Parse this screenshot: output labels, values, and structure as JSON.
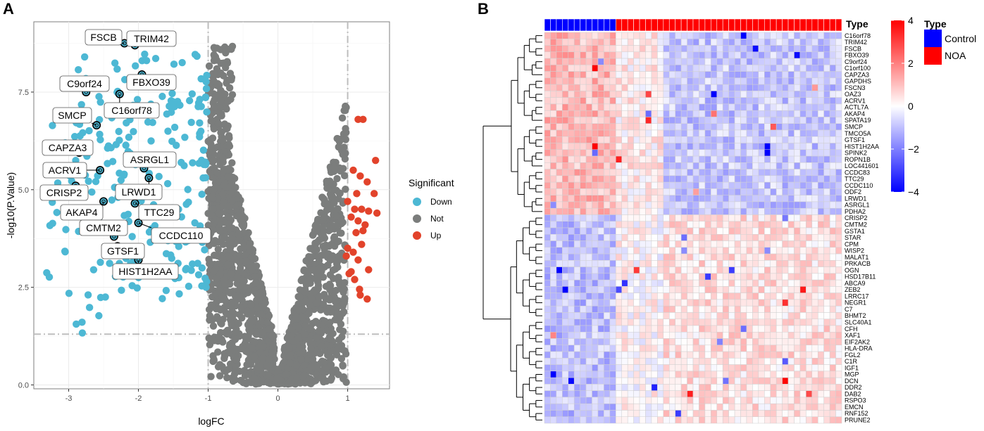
{
  "panels": {
    "a_letter": "A",
    "b_letter": "B"
  },
  "chart_data": [
    {
      "type": "scatter",
      "title": "",
      "xlabel": "logFC",
      "ylabel": "-log10(P.Value)",
      "xlim": [
        -3.5,
        1.6
      ],
      "ylim": [
        -0.1,
        9.3
      ],
      "x_ticks": [
        -3,
        -2,
        -1,
        0,
        1
      ],
      "x_tick_labels": [
        "-3",
        "-2",
        "-1",
        "0",
        "1"
      ],
      "y_ticks": [
        0.0,
        2.5,
        5.0,
        7.5
      ],
      "y_tick_labels": [
        "0.0",
        "2.5",
        "5.0",
        "7.5"
      ],
      "thresholds": {
        "logFC": [
          -1,
          1
        ],
        "neglog10p": 1.3
      },
      "legend": {
        "title": "Significant",
        "entries": [
          {
            "name": "Down",
            "color": "#4db8d4"
          },
          {
            "name": "Not",
            "color": "#7b7d7c"
          },
          {
            "name": "Up",
            "color": "#e2432b"
          }
        ]
      },
      "up_points": [
        [
          1.15,
          6.8
        ],
        [
          1.22,
          6.8
        ],
        [
          1.4,
          5.75
        ],
        [
          1.08,
          5.5
        ],
        [
          1.18,
          5.35
        ],
        [
          1.28,
          5.2
        ],
        [
          1.13,
          4.9
        ],
        [
          1.0,
          4.7
        ],
        [
          1.1,
          4.5
        ],
        [
          1.2,
          4.5
        ],
        [
          1.3,
          4.45
        ],
        [
          1.42,
          4.4
        ],
        [
          1.05,
          4.3
        ],
        [
          1.15,
          4.2
        ],
        [
          1.25,
          4.1
        ],
        [
          1.12,
          3.9
        ],
        [
          1.2,
          3.6
        ],
        [
          1.0,
          3.5
        ],
        [
          1.08,
          3.4
        ],
        [
          1.15,
          3.2
        ],
        [
          1.3,
          2.95
        ],
        [
          1.05,
          2.9
        ],
        [
          1.1,
          2.7
        ],
        [
          1.18,
          2.3
        ],
        [
          1.28,
          2.2
        ],
        [
          1.02,
          2.85
        ],
        [
          1.22,
          3.95
        ],
        [
          1.38,
          4.9
        ],
        [
          0.98,
          3.3
        ],
        [
          1.17,
          2.45
        ]
      ],
      "labeled_genes": [
        {
          "gene": "FSCB",
          "x": -2.2,
          "y": 8.75
        },
        {
          "gene": "TRIM42",
          "x": -2.05,
          "y": 8.7
        },
        {
          "gene": "C9orf24",
          "x": -2.75,
          "y": 7.5
        },
        {
          "gene": "FBXO39",
          "x": -1.95,
          "y": 7.95
        },
        {
          "gene": "C16orf78",
          "x": -2.27,
          "y": 7.45
        },
        {
          "gene": "SMCP",
          "x": -2.6,
          "y": 6.65
        },
        {
          "gene": "CAPZA3",
          "x": -2.85,
          "y": 5.95
        },
        {
          "gene": "ASRGL1",
          "x": -1.92,
          "y": 5.55
        },
        {
          "gene": "ACRV1",
          "x": -2.55,
          "y": 5.5
        },
        {
          "gene": "CRISP2",
          "x": -2.9,
          "y": 5.1
        },
        {
          "gene": "LRWD1",
          "x": -1.85,
          "y": 5.3
        },
        {
          "gene": "AKAP4",
          "x": -2.5,
          "y": 4.7
        },
        {
          "gene": "TTC29",
          "x": -2.05,
          "y": 4.65
        },
        {
          "gene": "CMTM2",
          "x": -2.35,
          "y": 3.8
        },
        {
          "gene": "CCDC110",
          "x": -2.0,
          "y": 4.15
        },
        {
          "gene": "GTSF1",
          "x": -2.3,
          "y": 3.55
        },
        {
          "gene": "HIST1H2AA",
          "x": -2.0,
          "y": 3.2
        }
      ],
      "gene_labels_text": [
        "FSCB",
        "TRIM42",
        "C9orf24",
        "FBXO39",
        "C16orf78",
        "SMCP",
        "CAPZA3",
        "ASRGL1",
        "ACRV1",
        "CRISP2",
        "LRWD1",
        "AKAP4",
        "TTC29",
        "CMTM2",
        "CCDC110",
        "GTSF1",
        "HIST1H2AA"
      ]
    },
    {
      "type": "heatmap",
      "title": "",
      "annotation": {
        "name": "Type",
        "groups": [
          {
            "name": "Control",
            "n": 12,
            "color": "#0000ff"
          },
          {
            "name": "NOA",
            "n": 38,
            "color": "#ff0000"
          }
        ]
      },
      "color_scale": {
        "min": -4,
        "max": 4,
        "low_color": "#0000ff",
        "mid_color": "#ffffff",
        "high_color": "#ff0000",
        "ticks": [
          4,
          2,
          0,
          -2,
          -4
        ],
        "tick_labels": [
          "4",
          "2",
          "0",
          "−2",
          "−4"
        ]
      },
      "legend_title": "Type",
      "legend_entries": [
        "Control",
        "NOA"
      ],
      "n_columns": 50,
      "up_in_control_cluster_size": 28,
      "rows": [
        "C16orf78",
        "TRIM42",
        "FSCB",
        "FBXO39",
        "C9orf24",
        "C1orf100",
        "CAPZA3",
        "GAPDHS",
        "FSCN3",
        "OAZ3",
        "ACRV1",
        "ACTL7A",
        "AKAP4",
        "SPATA19",
        "SMCP",
        "TMCO5A",
        "GTSF1",
        "HIST1H2AA",
        "SPINK2",
        "ROPN1B",
        "LOC441601",
        "CCDC83",
        "TTC29",
        "CCDC110",
        "ODF2",
        "LRWD1",
        "ASRGL1",
        "PDHA2",
        "CRISP2",
        "CMTM2",
        "GSTA1",
        "STAR",
        "CPM",
        "WISP2",
        "MALAT1",
        "PRKACB",
        "OGN",
        "HSD17B11",
        "ABCA9",
        "ZEB2",
        "LRRC17",
        "NEGR1",
        "C7",
        "BHMT2",
        "SLC40A1",
        "CFH",
        "XAF1",
        "EIF2AK2",
        "HLA-DRA",
        "FGL2",
        "C1R",
        "IGF1",
        "MGP",
        "DCN",
        "DDR2",
        "DAB2",
        "RSPO3",
        "EMCN",
        "RNF152",
        "PRUNE2"
      ]
    }
  ]
}
